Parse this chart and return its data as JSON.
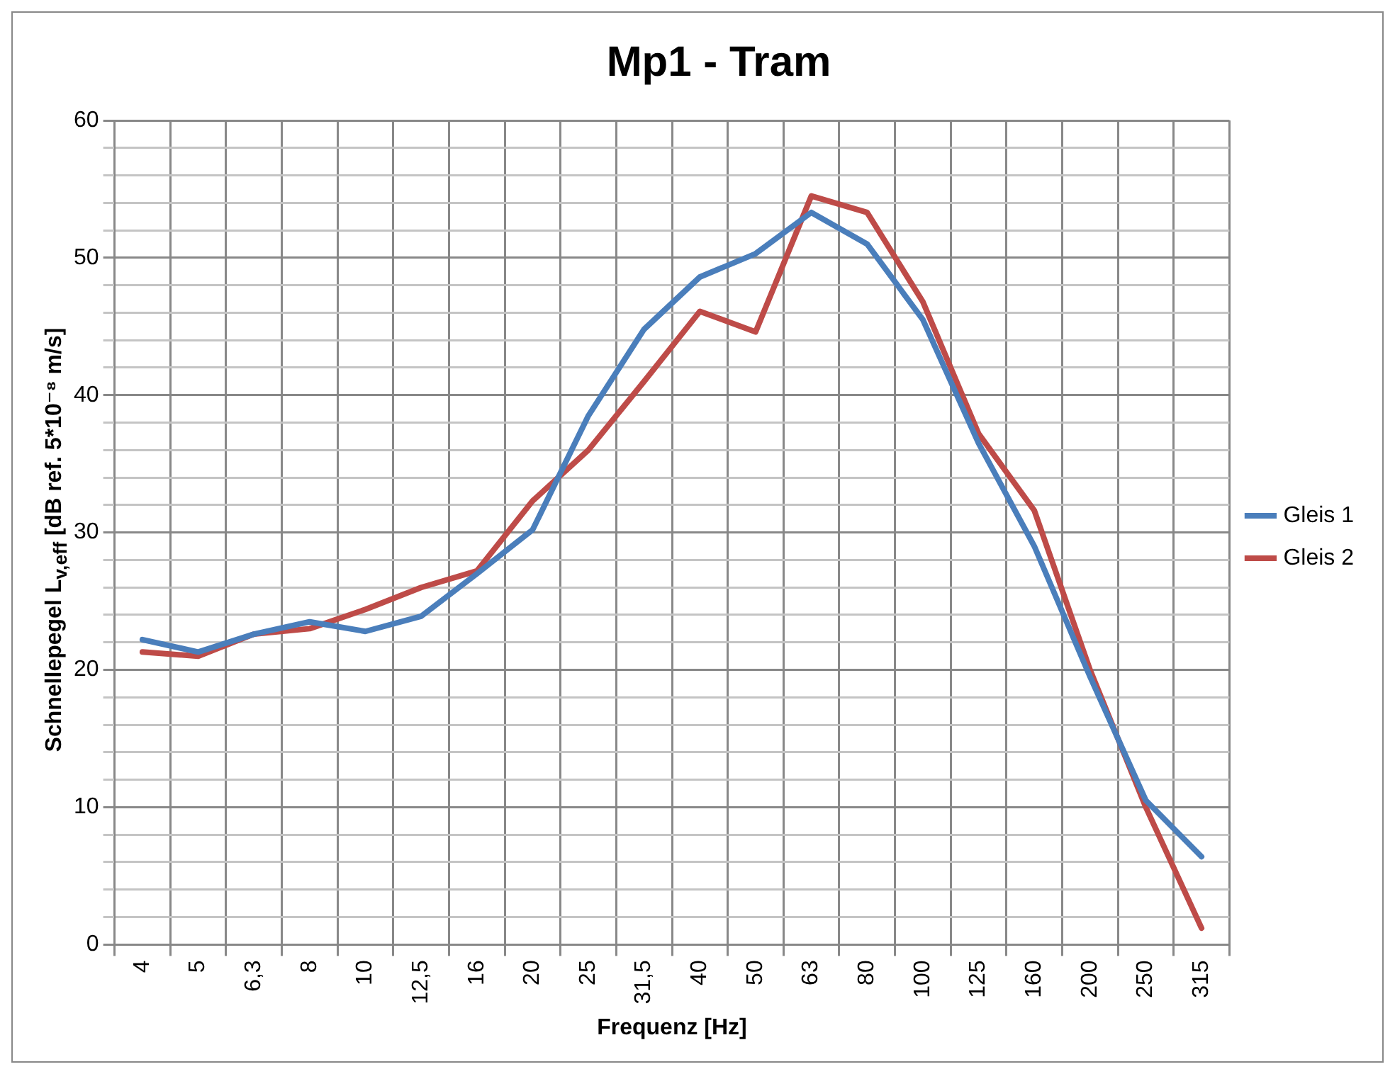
{
  "chart_data": {
    "type": "line",
    "title": "Mp1 - Tram",
    "xlabel": "Frequenz [Hz]",
    "ylabel": "Schnellepegel L$_{v,eff}$ [dB ref. 5*10⁻⁸ m/s]",
    "categories": [
      "4",
      "5",
      "6,3",
      "8",
      "10",
      "12,5",
      "16",
      "20",
      "25",
      "31,5",
      "40",
      "50",
      "63",
      "80",
      "100",
      "125",
      "160",
      "200",
      "250",
      "315"
    ],
    "series": [
      {
        "name": "Gleis 1",
        "color": "#4a7ebb",
        "values": [
          22.2,
          21.3,
          22.6,
          23.5,
          22.8,
          23.9,
          27,
          30.2,
          38.5,
          44.8,
          48.6,
          50.3,
          53.3,
          51,
          45.5,
          36.5,
          29,
          19.5,
          10.5,
          6.4
        ]
      },
      {
        "name": "Gleis 2",
        "color": "#be4b48",
        "values": [
          21.3,
          21,
          22.6,
          23,
          24.4,
          26,
          27.2,
          32.3,
          36,
          41,
          46.1,
          44.6,
          54.5,
          53.3,
          46.8,
          37.2,
          31.6,
          20,
          10,
          1.2
        ]
      }
    ],
    "ylim": [
      0,
      60
    ],
    "yticks": [
      0,
      {
        "value": 2,
        "label": null
      },
      {
        "value": 4,
        "label": null
      },
      {
        "value": 6,
        "label": null
      },
      {
        "value": 8,
        "label": null
      },
      10,
      {
        "value": 12,
        "label": null
      },
      {
        "value": 14,
        "label": null
      },
      {
        "value": 16,
        "label": null
      },
      {
        "value": 18,
        "label": null
      },
      20,
      {
        "value": 22,
        "label": null
      },
      {
        "value": 24,
        "label": null
      },
      {
        "value": 26,
        "label": null
      },
      {
        "value": 28,
        "label": null
      },
      30,
      {
        "value": 32,
        "label": null
      },
      {
        "value": 34,
        "label": null
      },
      {
        "value": 36,
        "label": null
      },
      {
        "value": 38,
        "label": null
      },
      40,
      {
        "value": 42,
        "label": null
      },
      {
        "value": 44,
        "label": null
      },
      {
        "value": 46,
        "label": null
      },
      {
        "value": 48,
        "label": null
      },
      50,
      {
        "value": 52,
        "label": null
      },
      {
        "value": 54,
        "label": null
      },
      {
        "value": 56,
        "label": null
      },
      {
        "value": 58,
        "label": null
      },
      60
    ],
    "grid": true,
    "legend": "right",
    "marker": "none",
    "line_style": "solid"
  }
}
